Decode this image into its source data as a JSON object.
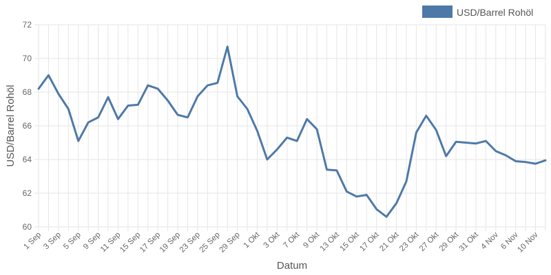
{
  "chart_data": {
    "type": "line",
    "title": "",
    "xlabel": "Datum",
    "ylabel": "USD/Barrel Rohöl",
    "ylim": [
      60,
      72
    ],
    "y_ticks": [
      60,
      62,
      64,
      66,
      68,
      70,
      72
    ],
    "grid": true,
    "legend_position": "top-right",
    "x_tick_labels": [
      "1 Sep",
      "3 Sep",
      "5 Sep",
      "9 Sep",
      "11 Sep",
      "15 Sep",
      "17 Sep",
      "19 Sep",
      "23 Sep",
      "25 Sep",
      "29 Sep",
      "1 Okt",
      "3 Okt",
      "7 Okt",
      "9 Okt",
      "13 Okt",
      "15 Okt",
      "17 Okt",
      "21 Okt",
      "23 Okt",
      "27 Okt",
      "29 Okt",
      "31 Okt",
      "4 Nov",
      "6 Nov",
      "10 Nov"
    ],
    "series": [
      {
        "name": "USD/Barrel Rohöl",
        "color": "#4e79a7",
        "values": [
          68.2,
          69.0,
          67.9,
          67.0,
          65.1,
          66.2,
          66.5,
          67.7,
          66.4,
          67.2,
          67.25,
          68.4,
          68.2,
          67.5,
          66.65,
          66.5,
          67.75,
          68.4,
          68.55,
          70.7,
          67.75,
          67.0,
          65.7,
          64.0,
          64.6,
          65.3,
          65.1,
          66.4,
          65.8,
          63.4,
          63.35,
          62.1,
          61.8,
          61.9,
          61.05,
          60.6,
          61.4,
          62.7,
          65.6,
          66.6,
          65.75,
          64.2,
          65.05,
          65.0,
          64.95,
          65.1,
          64.5,
          64.25,
          63.9,
          63.85,
          63.75,
          63.95
        ]
      }
    ]
  }
}
